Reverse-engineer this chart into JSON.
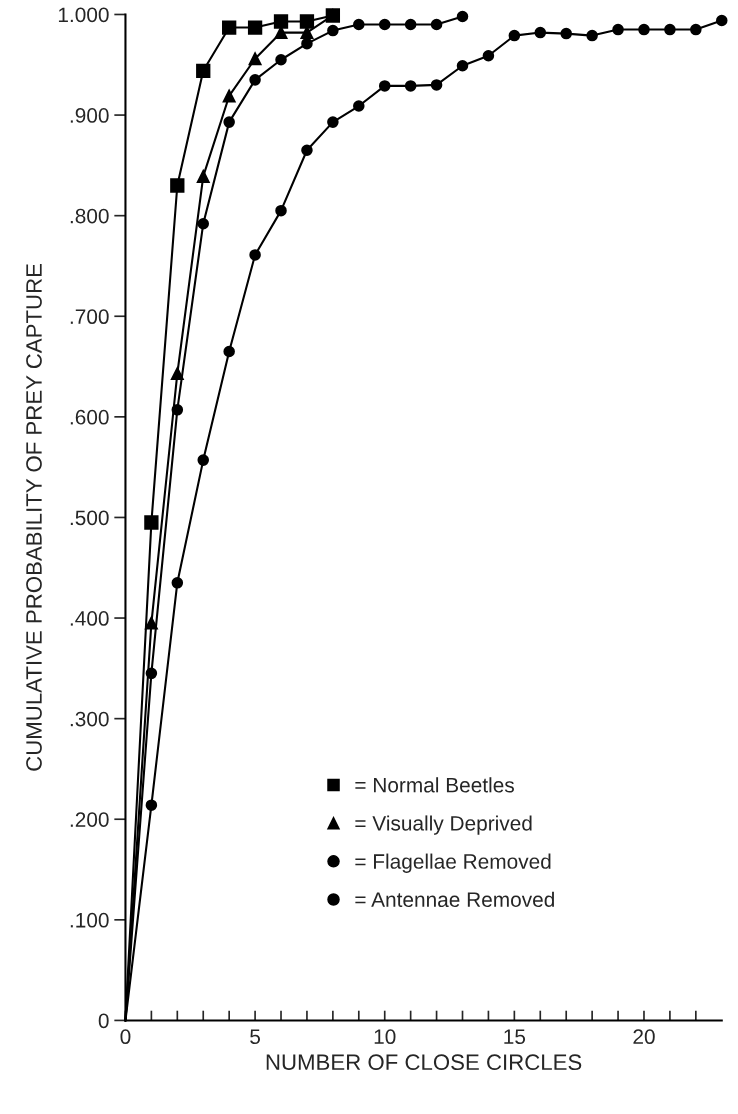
{
  "chart_data": {
    "type": "line",
    "xlabel": "NUMBER OF CLOSE CIRCLES",
    "ylabel": "CUMULATIVE PROBABILITY OF PREY CAPTURE",
    "series": [
      {
        "name": "= Normal Beetles",
        "color": "#000000",
        "marker": "square",
        "x": [
          0,
          1,
          2,
          3,
          4,
          5,
          6,
          7,
          8
        ],
        "values": [
          0,
          0.495,
          0.83,
          0.944,
          0.987,
          0.987,
          0.993,
          0.993,
          0.999
        ]
      },
      {
        "name": "= Visually Deprived",
        "color": "#000000",
        "marker": "triangle",
        "x": [
          0,
          1,
          2,
          3,
          4,
          5,
          6,
          7,
          8
        ],
        "values": [
          0,
          0.395,
          0.643,
          0.839,
          0.919,
          0.956,
          0.982,
          0.982,
          0.999
        ]
      },
      {
        "name": "= Flagellae Removed",
        "color": "#000000",
        "marker": "circle",
        "x": [
          0,
          1,
          2,
          3,
          4,
          5,
          6,
          7,
          8,
          9,
          10,
          11,
          12,
          13
        ],
        "values": [
          0,
          0.345,
          0.607,
          0.792,
          0.893,
          0.935,
          0.955,
          0.971,
          0.984,
          0.99,
          0.99,
          0.99,
          0.99,
          0.998
        ]
      },
      {
        "name": "= Antennae Removed",
        "color": "#000000",
        "marker": "circle",
        "x": [
          0,
          1,
          2,
          3,
          4,
          5,
          6,
          7,
          8,
          9,
          10,
          11,
          12,
          13,
          14,
          15,
          16,
          17,
          18,
          19,
          20,
          21,
          22,
          23
        ],
        "values": [
          0,
          0.214,
          0.435,
          0.557,
          0.665,
          0.761,
          0.805,
          0.865,
          0.893,
          0.909,
          0.929,
          0.929,
          0.93,
          0.949,
          0.959,
          0.979,
          0.982,
          0.981,
          0.979,
          0.985,
          0.985,
          0.985,
          0.985,
          0.994
        ]
      }
    ],
    "xlim": [
      0,
      23
    ],
    "xticks": [
      0,
      {
        "value": 1,
        "label": null
      },
      {
        "value": 2,
        "label": null
      },
      {
        "value": 3,
        "label": null
      },
      {
        "value": 4,
        "label": null
      },
      5,
      {
        "value": 6,
        "label": null
      },
      {
        "value": 7,
        "label": null
      },
      {
        "value": 8,
        "label": null
      },
      {
        "value": 9,
        "label": null
      },
      10,
      {
        "value": 11,
        "label": null
      },
      {
        "value": 12,
        "label": null
      },
      {
        "value": 13,
        "label": null
      },
      {
        "value": 14,
        "label": null
      },
      15,
      {
        "value": 16,
        "label": null
      },
      {
        "value": 17,
        "label": null
      },
      {
        "value": 18,
        "label": null
      },
      {
        "value": 19,
        "label": null
      },
      20,
      {
        "value": 21,
        "label": null
      },
      {
        "value": 22,
        "label": null
      }
    ],
    "ylim": [
      0,
      1
    ],
    "yticks": [
      0,
      {
        "value": 0.1,
        "label": ".100"
      },
      {
        "value": 0.2,
        "label": ".200"
      },
      {
        "value": 0.3,
        "label": ".300"
      },
      {
        "value": 0.4,
        "label": ".400"
      },
      {
        "value": 0.5,
        "label": ".500"
      },
      {
        "value": 0.6,
        "label": ".600"
      },
      {
        "value": 0.7,
        "label": ".700"
      },
      {
        "value": 0.8,
        "label": ".800"
      },
      {
        "value": 0.9,
        "label": ".900"
      },
      {
        "value": 1,
        "label": "1.000"
      }
    ],
    "legend": "bottom right",
    "grid": false,
    "line_style": "solid"
  }
}
